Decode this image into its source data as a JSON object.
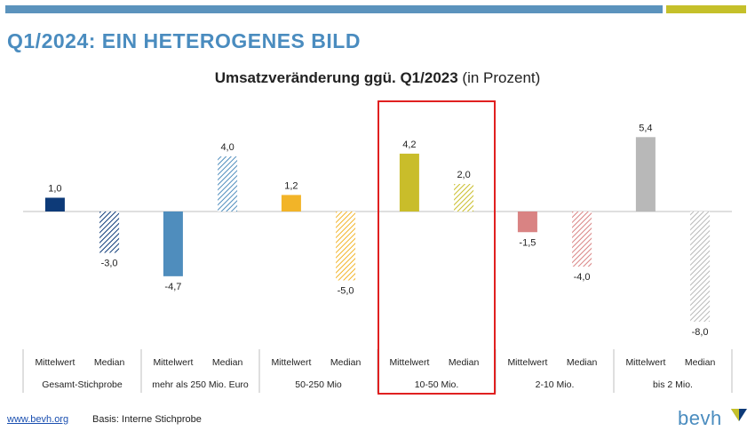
{
  "slide": {
    "title": "Q1/2024: EIN HETEROGENES BILD"
  },
  "chart_title": {
    "bold": "Umsatzveränderung ggü. Q1/2023",
    "normal": "(in Prozent)"
  },
  "footer": {
    "link": "www.bevh.org",
    "note": "Basis: Interne Stichprobe"
  },
  "logo": {
    "text": "bevh"
  },
  "colors": {
    "topbar_blue": "#5b93bd",
    "topbar_olive": "#c5c02a",
    "highlight_box": "#e02020"
  },
  "chart_data": {
    "type": "bar",
    "title": "Umsatzveränderung ggü. Q1/2023 (in Prozent)",
    "bar_labels": [
      "Mittelwert",
      "Median"
    ],
    "groups": [
      {
        "name": "Gesamt-Stichprobe",
        "values": [
          1.0,
          -3.0
        ],
        "labels": [
          "1,0",
          "-3,0"
        ],
        "color": "#0d3a78",
        "highlighted": false
      },
      {
        "name": "mehr als 250 Mio. Euro",
        "values": [
          -4.7,
          4.0
        ],
        "labels": [
          "-4,7",
          "4,0"
        ],
        "color": "#4f8dbd",
        "highlighted": false
      },
      {
        "name": "50-250 Mio",
        "values": [
          1.2,
          -5.0
        ],
        "labels": [
          "1,2",
          "-5,0"
        ],
        "color": "#f2b428",
        "highlighted": false
      },
      {
        "name": "10-50 Mio.",
        "values": [
          4.2,
          2.0
        ],
        "labels": [
          "4,2",
          "2,0"
        ],
        "color": "#c9bd2a",
        "highlighted": true
      },
      {
        "name": "2-10 Mio.",
        "values": [
          -1.5,
          -4.0
        ],
        "labels": [
          "-1,5",
          "-4,0"
        ],
        "color": "#d98383",
        "highlighted": false
      },
      {
        "name": "bis 2 Mio.",
        "values": [
          5.4,
          -8.0
        ],
        "labels": [
          "5,4",
          "-8,0"
        ],
        "color": "#b8b8b8",
        "highlighted": false
      }
    ],
    "median_style": "hatched",
    "ylim": [
      -8,
      5.4
    ],
    "grid": false,
    "legend": "none"
  }
}
